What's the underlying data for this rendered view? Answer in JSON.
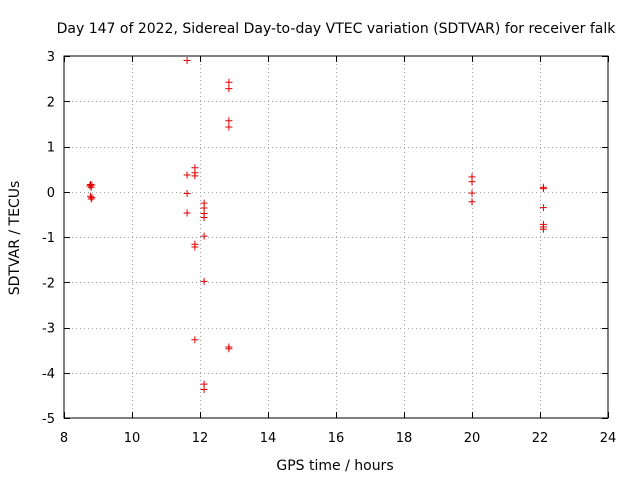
{
  "chart_data": {
    "type": "scatter",
    "title": "Day 147 of 2022, Sidereal Day-to-day VTEC variation (SDTVAR) for receiver falk",
    "xlabel": "GPS time / hours",
    "ylabel": "SDTVAR / TECUs",
    "xlim": [
      8,
      24
    ],
    "ylim": [
      -5,
      3
    ],
    "xticks": [
      "8",
      "10",
      "12",
      "14",
      "16",
      "18",
      "20",
      "22",
      "24"
    ],
    "yticks": [
      "3",
      "2",
      "1",
      "0",
      "-1",
      "-2",
      "-3",
      "-4",
      "-5"
    ],
    "grid": true,
    "marker": "+",
    "series": [
      {
        "name": "SDTVAR",
        "color": "#e00000",
        "points": [
          [
            8.78,
            0.16
          ],
          [
            8.82,
            0.15
          ],
          [
            8.76,
            0.13
          ],
          [
            8.8,
            0.1
          ],
          [
            8.78,
            -0.1
          ],
          [
            8.82,
            -0.13
          ],
          [
            8.8,
            -0.16
          ],
          [
            11.62,
            2.9
          ],
          [
            11.62,
            0.37
          ],
          [
            11.62,
            -0.04
          ],
          [
            11.62,
            -0.47
          ],
          [
            11.85,
            0.53
          ],
          [
            11.85,
            0.42
          ],
          [
            11.85,
            0.35
          ],
          [
            11.85,
            -1.16
          ],
          [
            11.85,
            -1.22
          ],
          [
            11.85,
            -3.27
          ],
          [
            12.12,
            -0.25
          ],
          [
            12.12,
            -0.36
          ],
          [
            12.12,
            -0.48
          ],
          [
            12.12,
            -0.57
          ],
          [
            12.12,
            -0.98
          ],
          [
            12.12,
            -1.98
          ],
          [
            12.12,
            -4.25
          ],
          [
            12.12,
            -4.37
          ],
          [
            12.85,
            2.42
          ],
          [
            12.85,
            2.28
          ],
          [
            12.85,
            1.57
          ],
          [
            12.85,
            1.43
          ],
          [
            12.85,
            -3.43
          ],
          [
            12.85,
            -3.47
          ],
          [
            20.0,
            0.33
          ],
          [
            20.0,
            0.22
          ],
          [
            20.0,
            -0.03
          ],
          [
            20.0,
            -0.22
          ],
          [
            22.1,
            0.1
          ],
          [
            22.1,
            0.07
          ],
          [
            22.1,
            -0.35
          ],
          [
            22.1,
            -0.72
          ],
          [
            22.1,
            -0.78
          ],
          [
            22.1,
            -0.83
          ]
        ]
      }
    ]
  }
}
